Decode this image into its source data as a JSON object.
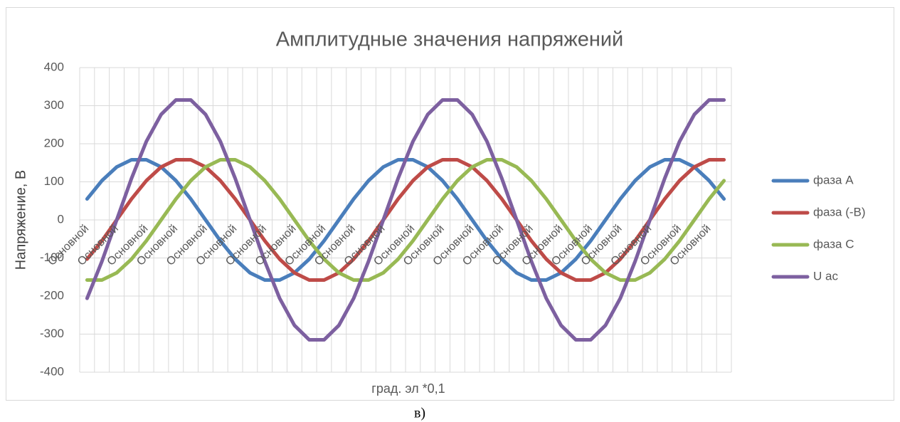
{
  "chart_data": {
    "type": "line",
    "title": "Амплитудные значения напряжений",
    "x_label": "град. эл *0,1",
    "y_label": "Напряжение, В",
    "caption": "в)",
    "categories": [
      "Основной",
      null,
      "Основной",
      null,
      "Основной",
      null,
      "Основной",
      null,
      "Основной",
      null,
      "Основной",
      null,
      "Основной",
      null,
      "Основной",
      null,
      "Основной",
      null,
      "Основной",
      null,
      "Основной",
      null,
      "Основной",
      null,
      "Основной",
      null,
      "Основной",
      null,
      "Основной",
      null,
      "Основной",
      null,
      "Основной",
      null,
      "Основной",
      null,
      "Основной",
      null,
      "Основной",
      null,
      "Основной",
      null,
      "Основной",
      null
    ],
    "series": [
      {
        "name": "фаза А",
        "color": "#4a7ebb",
        "values": [
          55,
          103,
          139,
          158,
          158,
          139,
          103,
          55,
          0,
          -55,
          -103,
          -139,
          -158,
          -158,
          -139,
          -103,
          -55,
          0,
          55,
          103,
          139,
          158,
          158,
          139,
          103,
          55,
          0,
          -55,
          -103,
          -139,
          -158,
          -158,
          -139,
          -103,
          -55,
          0,
          55,
          103,
          139,
          158,
          158,
          139,
          103,
          55
        ]
      },
      {
        "name": "фаза (-В)",
        "color": "#be4b48",
        "values": [
          -103,
          -55,
          0,
          55,
          103,
          139,
          158,
          158,
          139,
          103,
          55,
          0,
          -55,
          -103,
          -139,
          -158,
          -158,
          -139,
          -103,
          -55,
          0,
          55,
          103,
          139,
          158,
          158,
          139,
          103,
          55,
          0,
          -55,
          -103,
          -139,
          -158,
          -158,
          -139,
          -103,
          -55,
          0,
          55,
          103,
          139,
          158,
          158
        ]
      },
      {
        "name": "фаза С",
        "color": "#98b954",
        "values": [
          -158,
          -158,
          -139,
          -103,
          -55,
          0,
          55,
          103,
          139,
          158,
          158,
          139,
          103,
          55,
          0,
          -55,
          -103,
          -139,
          -158,
          -158,
          -139,
          -103,
          -55,
          0,
          55,
          103,
          139,
          158,
          158,
          139,
          103,
          55,
          0,
          -55,
          -103,
          -139,
          -158,
          -158,
          -139,
          -103,
          -55,
          0,
          55,
          103
        ]
      },
      {
        "name": "U ac",
        "color": "#7d60a0",
        "values": [
          -206,
          -109,
          0,
          109,
          206,
          277,
          315,
          315,
          277,
          206,
          109,
          0,
          -109,
          -206,
          -277,
          -315,
          -315,
          -277,
          -206,
          -109,
          0,
          109,
          206,
          277,
          315,
          315,
          277,
          206,
          109,
          0,
          -109,
          -206,
          -277,
          -315,
          -315,
          -277,
          -206,
          -109,
          0,
          109,
          206,
          277,
          315,
          315
        ]
      }
    ],
    "ylim": [
      -400,
      400
    ],
    "yticks": [
      -400,
      -300,
      -200,
      -100,
      0,
      100,
      200,
      300,
      400
    ],
    "grid": true,
    "legend": "right"
  }
}
